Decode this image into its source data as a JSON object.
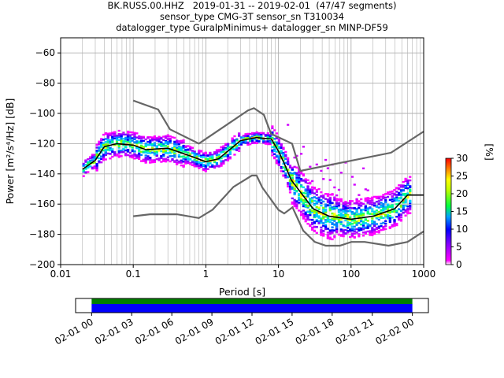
{
  "header": {
    "line1": "BK.RUSS.00.HHZ   2019-01-31 -- 2019-02-01  (47/47 segments)",
    "line2": "sensor_type CMG-3T sensor_sn T310034",
    "line3": "datalogger_type GuralpMinimus+ datalogger_sn MINP-DF59"
  },
  "chart_data": [
    {
      "type": "heatmap",
      "title": "BK.RUSS.00.HHZ   2019-01-31 -- 2019-02-01  (47/47 segments)",
      "xlabel": "Period [s]",
      "ylabel": "Power [m²/s⁴/Hz] [dB]",
      "x_scale": "log",
      "xlim": [
        0.01,
        1000
      ],
      "ylim": [
        -200,
        -50
      ],
      "x_ticks": [
        "0.01",
        "0.1",
        "1",
        "10",
        "100",
        "1000"
      ],
      "y_ticks": [
        "−60",
        "−80",
        "−100",
        "−120",
        "−140",
        "−160",
        "−180",
        "−200"
      ],
      "grid": true,
      "colorbar": {
        "label": "[%]",
        "range": [
          0,
          30
        ],
        "ticks": [
          "0",
          "5",
          "10",
          "15",
          "20",
          "25",
          "30"
        ]
      },
      "series": [
        {
          "name": "",
          "role": "noise model high",
          "color": "#666666",
          "x": [
            0.1,
            0.22,
            0.32,
            0.8,
            3.8,
            4.6,
            6.3,
            7.9,
            15.4,
            20,
            354.8,
            1000
          ],
          "y": [
            -91.5,
            -97.4,
            -110.5,
            -120,
            -98,
            -96.5,
            -101,
            -113.5,
            -120,
            -138,
            -126,
            -112
          ]
        },
        {
          "name": "",
          "role": "noise model low",
          "color": "#666666",
          "x": [
            0.1,
            0.17,
            0.4,
            0.8,
            1.24,
            2.4,
            4.3,
            5,
            6,
            10,
            12,
            15.6,
            21.9,
            31.6,
            45,
            70,
            101,
            154,
            328,
            600,
            1000
          ],
          "y": [
            -168,
            -166.7,
            -166.7,
            -169.2,
            -163.7,
            -148.6,
            -141.1,
            -141.1,
            -149,
            -163.8,
            -166.2,
            -162.1,
            -177.5,
            -185,
            -187.5,
            -187.5,
            -185,
            -185,
            -187.5,
            -185,
            -178
          ]
        },
        {
          "name": "",
          "role": "mode",
          "color": "#000000",
          "x": [
            0.02,
            0.03,
            0.04,
            0.06,
            0.1,
            0.15,
            0.3,
            0.6,
            1,
            1.5,
            2,
            3,
            5,
            8,
            10,
            12,
            15,
            20,
            30,
            50,
            100,
            200,
            400,
            600,
            1000
          ],
          "y": [
            -137,
            -131,
            -122,
            -120,
            -121,
            -124,
            -123,
            -128,
            -132,
            -130,
            -125,
            -118,
            -116,
            -117,
            -125,
            -133,
            -144,
            -152,
            -163,
            -168,
            -170,
            -168,
            -163,
            -154,
            -154
          ]
        }
      ]
    },
    {
      "type": "bar",
      "title": "",
      "xlabel": "",
      "x_ticks": [
        "02-01 00",
        "02-01 03",
        "02-01 06",
        "02-01 09",
        "02-01 12",
        "02-01 15",
        "02-01 18",
        "02-01 21",
        "02-02 00"
      ],
      "xlim_hours": [
        -1.2,
        25.2
      ],
      "bands": [
        {
          "name": "",
          "color": "#008000",
          "x": [
            0,
            24
          ]
        },
        {
          "name": "",
          "color": "#0000ff",
          "x": [
            0,
            24
          ]
        }
      ]
    }
  ]
}
